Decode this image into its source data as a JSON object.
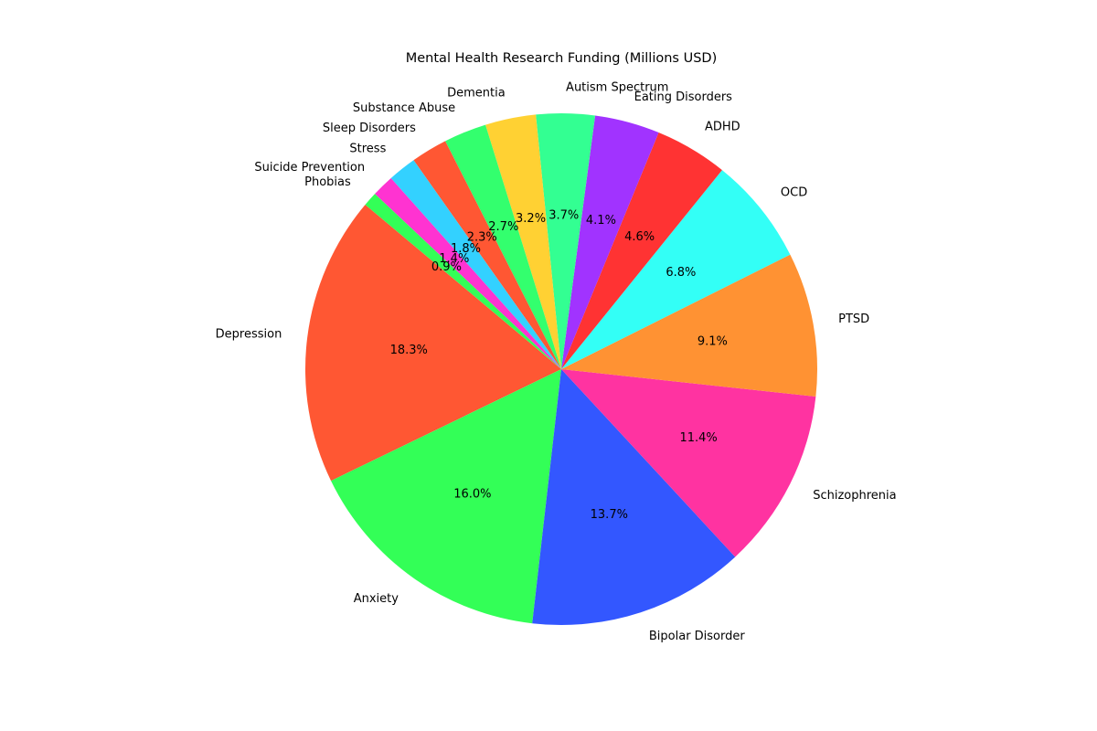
{
  "chart_data": {
    "type": "pie",
    "title": "Mental Health Research Funding (Millions USD)",
    "categories": [
      "Depression",
      "Anxiety",
      "Bipolar Disorder",
      "Schizophrenia",
      "PTSD",
      "OCD",
      "ADHD",
      "Eating Disorders",
      "Autism Spectrum",
      "Dementia",
      "Substance Abuse",
      "Sleep Disorders",
      "Stress",
      "Suicide Prevention",
      "Phobias"
    ],
    "values": [
      18.3,
      16.0,
      13.7,
      11.4,
      9.1,
      6.8,
      4.6,
      4.1,
      3.7,
      3.2,
      2.7,
      2.3,
      1.8,
      1.4,
      0.9
    ],
    "value_labels": [
      "18.3%",
      "16.0%",
      "13.7%",
      "11.4%",
      "9.1%",
      "6.8%",
      "4.6%",
      "4.1%",
      "3.7%",
      "3.2%",
      "2.7%",
      "2.3%",
      "1.8%",
      "1.4%",
      "0.9%"
    ],
    "value_unit": "percent of total",
    "colors": [
      "#FF5733",
      "#33FF57",
      "#3357FF",
      "#FF33A1",
      "#FF9233",
      "#33FFF6",
      "#FF3333",
      "#A133FF",
      "#33FF92",
      "#FFD133",
      "#33FF6E",
      "#FF5733",
      "#33D1FF",
      "#FF33D1",
      "#33FF57"
    ],
    "start_angle_deg": 140,
    "direction": "counterclockwise",
    "legend": "none"
  }
}
